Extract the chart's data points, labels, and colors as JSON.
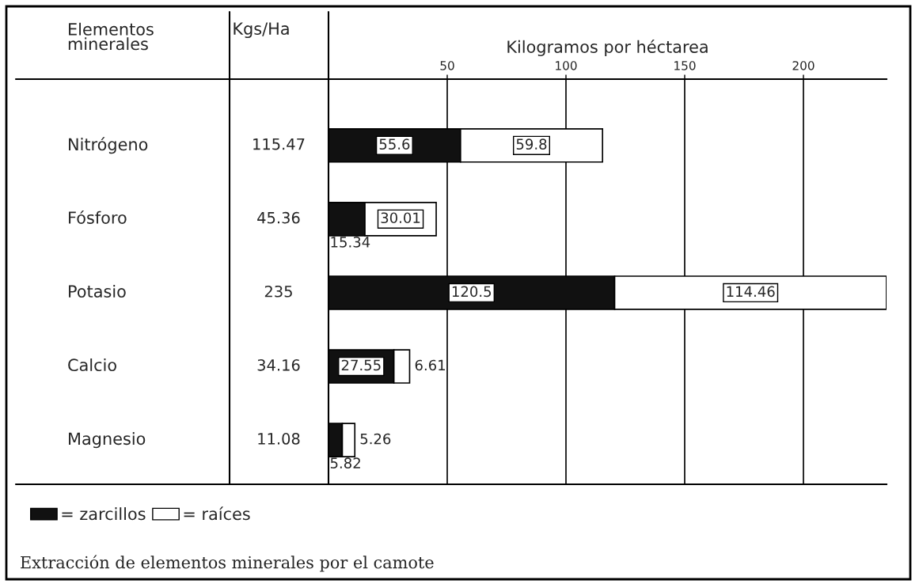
{
  "chart_data": {
    "type": "bar",
    "orientation": "horizontal",
    "stacked": true,
    "title": "Extracción de elementos minerales por el camote",
    "x2label": "Kilogramos por héctarea",
    "ylabel": "Elementos minerales",
    "annotations": [
      "Kgs/Ha",
      "115.47",
      "45.36",
      "235",
      "34.16",
      "11.08"
    ],
    "categories": [
      "Nitrógeno",
      "Fósforo",
      "Potasio",
      "Calcio",
      "Magnesio"
    ],
    "series": [
      {
        "name": "= zarcillos",
        "color": "#111111",
        "values": [
          55.6,
          15.34,
          120.5,
          27.55,
          5.82
        ],
        "value_labels": [
          "55.6",
          "15.34",
          "120.5",
          "27.55",
          "5.82"
        ]
      },
      {
        "name": "= raíces",
        "color": "#ffffff",
        "values": [
          59.8,
          30.01,
          114.46,
          6.61,
          5.26
        ],
        "value_labels": [
          "59.8",
          "30.01",
          "114.46",
          "6.61",
          "5.26"
        ]
      }
    ],
    "x2lim": [
      0,
      235
    ],
    "x2ticks": [
      50,
      100,
      150,
      200
    ],
    "grid": "x",
    "legend": "bottom",
    "data_labels": true
  }
}
